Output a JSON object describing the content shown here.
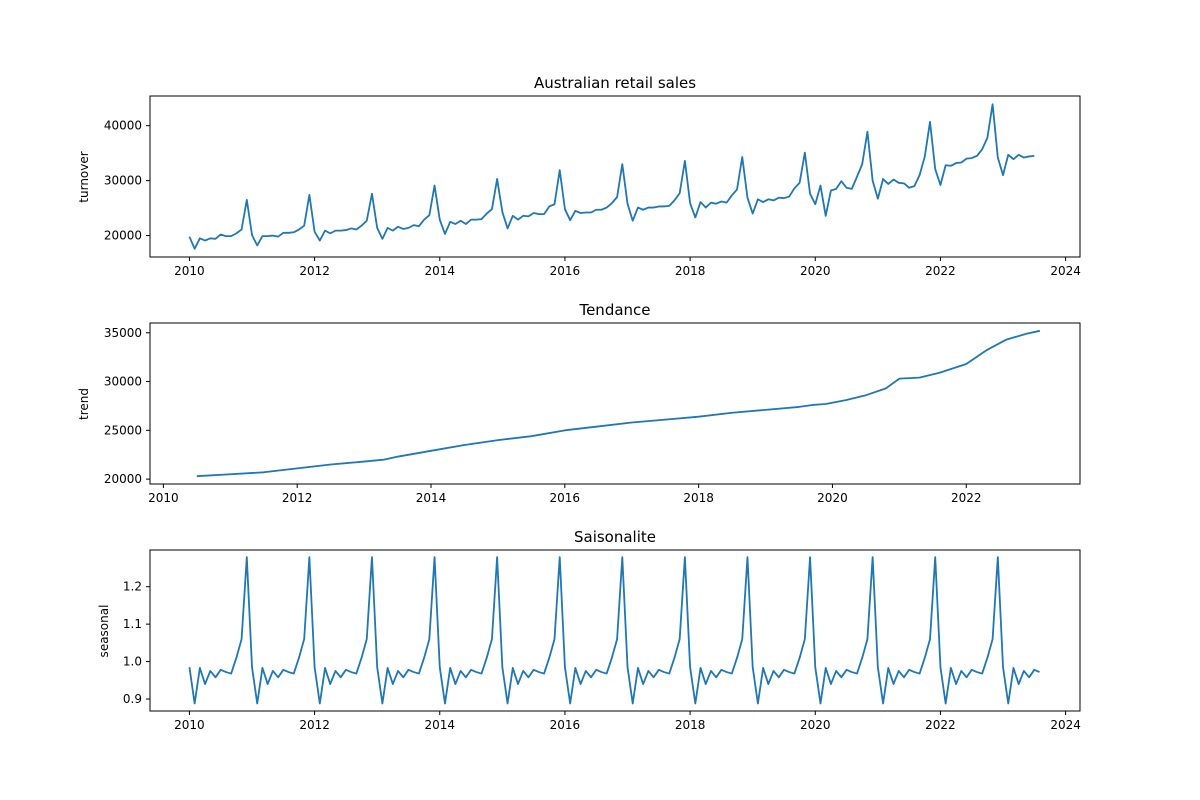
{
  "chart_data": [
    {
      "type": "line",
      "title": "Australian retail sales",
      "ylabel": "turnover",
      "xlabel": "",
      "xlim": [
        2009.37,
        2024.23
      ],
      "ylim": [
        16100,
        45400
      ],
      "xticks": [
        2010,
        2012,
        2014,
        2016,
        2018,
        2020,
        2022,
        2024
      ],
      "yticks": [
        20000,
        30000,
        40000
      ],
      "color": "#1f77b4",
      "grid": false,
      "series": [
        {
          "name": "",
          "x_start": 2010.0,
          "x_step_months": 1,
          "values": [
            19800,
            17600,
            19500,
            19100,
            19500,
            19400,
            20200,
            19900,
            19900,
            20400,
            21100,
            26500,
            20100,
            18200,
            19900,
            19900,
            20000,
            19800,
            20500,
            20500,
            20600,
            21100,
            21800,
            27400,
            20700,
            19100,
            20900,
            20400,
            20900,
            20900,
            21000,
            21300,
            21100,
            21800,
            22700,
            27600,
            21400,
            19400,
            21400,
            20900,
            21600,
            21200,
            21400,
            21900,
            21700,
            22900,
            23700,
            29100,
            22900,
            20300,
            22500,
            22100,
            22700,
            22100,
            22900,
            22900,
            23000,
            24000,
            24800,
            30300,
            24300,
            21300,
            23600,
            22900,
            23600,
            23500,
            24100,
            23900,
            23900,
            25300,
            25700,
            31900,
            24800,
            22800,
            24500,
            24100,
            24200,
            24200,
            24700,
            24700,
            25100,
            25900,
            27000,
            33000,
            25800,
            22700,
            25100,
            24700,
            25100,
            25100,
            25300,
            25300,
            25400,
            26400,
            27700,
            33600,
            25900,
            23300,
            26100,
            25100,
            26000,
            25800,
            26200,
            26000,
            27300,
            28400,
            34300,
            26900,
            24000,
            26600,
            26100,
            26600,
            26400,
            26900,
            26800,
            27100,
            28600,
            29600,
            35100,
            27600,
            25700,
            29100,
            23600,
            28200,
            28500,
            29900,
            28700,
            28500,
            30700,
            33000,
            38900,
            30000,
            26700,
            30300,
            29400,
            30200,
            29600,
            29500,
            28700,
            29000,
            31000,
            34400,
            40700,
            32100,
            29200,
            32800,
            32700,
            33200,
            33300,
            34000,
            34100,
            34500,
            35700,
            37800,
            43900,
            34200,
            31000,
            34700,
            33900,
            34700,
            34200,
            34400,
            34500
          ]
        }
      ]
    },
    {
      "type": "line",
      "title": "Tendance",
      "ylabel": "trend",
      "xlabel": "",
      "xlim": [
        2009.8,
        2023.7
      ],
      "ylim": [
        19500,
        36000
      ],
      "xticks": [
        2010,
        2012,
        2014,
        2016,
        2018,
        2020,
        2022
      ],
      "yticks": [
        20000,
        25000,
        30000,
        35000
      ],
      "color": "#1f77b4",
      "grid": false,
      "series": [
        {
          "name": "",
          "points": [
            [
              2010.5,
              20300
            ],
            [
              2011.0,
              20500
            ],
            [
              2011.5,
              20700
            ],
            [
              2012.0,
              21100
            ],
            [
              2012.5,
              21500
            ],
            [
              2013.0,
              21800
            ],
            [
              2013.3,
              22000
            ],
            [
              2013.5,
              22300
            ],
            [
              2014.0,
              22900
            ],
            [
              2014.5,
              23500
            ],
            [
              2015.0,
              24000
            ],
            [
              2015.5,
              24400
            ],
            [
              2016.0,
              25000
            ],
            [
              2016.5,
              25400
            ],
            [
              2017.0,
              25800
            ],
            [
              2017.5,
              26100
            ],
            [
              2018.0,
              26400
            ],
            [
              2018.5,
              26800
            ],
            [
              2019.0,
              27100
            ],
            [
              2019.5,
              27400
            ],
            [
              2019.7,
              27600
            ],
            [
              2019.9,
              27700
            ],
            [
              2020.2,
              28100
            ],
            [
              2020.5,
              28600
            ],
            [
              2020.8,
              29300
            ],
            [
              2021.0,
              30300
            ],
            [
              2021.3,
              30400
            ],
            [
              2021.6,
              30900
            ],
            [
              2022.0,
              31800
            ],
            [
              2022.3,
              33200
            ],
            [
              2022.6,
              34300
            ],
            [
              2022.9,
              34900
            ],
            [
              2023.1,
              35200
            ]
          ]
        }
      ]
    },
    {
      "type": "line",
      "title": "Saisonalite",
      "ylabel": "seasonal",
      "xlabel": "",
      "xlim": [
        2009.37,
        2024.23
      ],
      "ylim": [
        0.868,
        1.298
      ],
      "xticks": [
        2010,
        2012,
        2014,
        2016,
        2018,
        2020,
        2022,
        2024
      ],
      "yticks": [
        0.9,
        1.0,
        1.1,
        1.2
      ],
      "ytick_labels": [
        "0.9",
        "1.0",
        "1.1",
        "1.2"
      ],
      "color": "#1f77b4",
      "grid": false,
      "series": [
        {
          "name": "",
          "x_start": 2010.0,
          "x_step_months": 1,
          "x_end": 2023.583,
          "pattern": [
            0.985,
            0.888,
            0.983,
            0.94,
            0.975,
            0.958,
            0.978,
            0.972,
            0.968,
            1.01,
            1.06,
            1.279
          ]
        }
      ]
    }
  ]
}
